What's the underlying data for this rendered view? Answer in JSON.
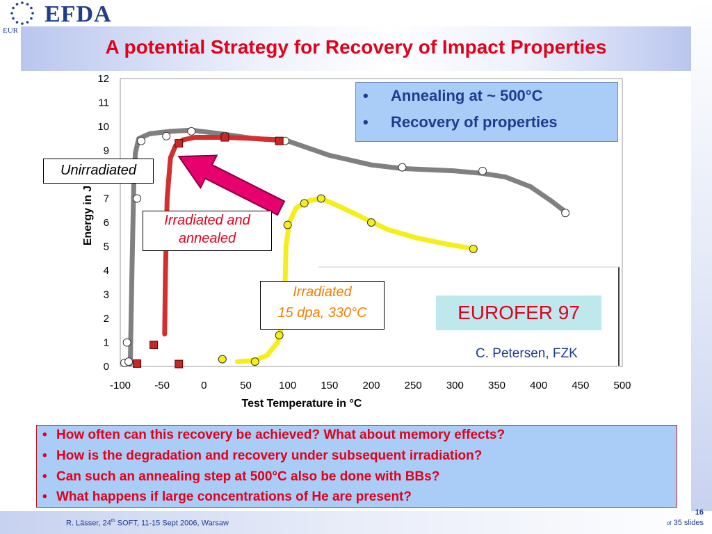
{
  "header": {
    "logo_text": "EFDA",
    "eu_label": "EUR"
  },
  "title": "A potential Strategy for Recovery of Impact Properties",
  "chart_data": {
    "type": "line",
    "xlabel": "Test Temperature in °C",
    "ylabel": "Energy in J",
    "xlim": [
      -100,
      500
    ],
    "ylim": [
      0,
      12
    ],
    "x_ticks": [
      -100,
      -50,
      0,
      50,
      100,
      150,
      200,
      250,
      300,
      350,
      400,
      450,
      500
    ],
    "y_ticks": [
      0,
      1,
      2,
      3,
      4,
      5,
      6,
      7,
      8,
      9,
      10,
      11,
      12
    ],
    "grid": false,
    "series": [
      {
        "name": "Unirradiated",
        "color": "#808080",
        "marker": "circle-white",
        "curve": [
          [
            -88,
            0.1
          ],
          [
            -86,
            4
          ],
          [
            -84,
            7.5
          ],
          [
            -82,
            8.9
          ],
          [
            -78,
            9.5
          ],
          [
            -65,
            9.7
          ],
          [
            -40,
            9.8
          ],
          [
            -15,
            9.85
          ],
          [
            20,
            9.7
          ],
          [
            60,
            9.5
          ],
          [
            100,
            9.4
          ],
          [
            150,
            8.8
          ],
          [
            200,
            8.4
          ],
          [
            237,
            8.25
          ],
          [
            270,
            8.2
          ],
          [
            300,
            8.15
          ],
          [
            332,
            8.05
          ],
          [
            360,
            7.9
          ],
          [
            390,
            7.5
          ],
          [
            415,
            6.9
          ],
          [
            430,
            6.5
          ]
        ],
        "points": [
          [
            -95,
            0.15
          ],
          [
            -90,
            0.2
          ],
          [
            -92,
            1.0
          ],
          [
            -80,
            7.0
          ],
          [
            -75,
            9.4
          ],
          [
            -45,
            9.6
          ],
          [
            -15,
            9.8
          ],
          [
            25,
            9.6
          ],
          [
            97,
            9.4
          ],
          [
            237,
            8.3
          ],
          [
            333,
            8.15
          ],
          [
            432,
            6.4
          ]
        ]
      },
      {
        "name": "Irradiated and annealed",
        "color": "#d32f2f",
        "marker": "square",
        "curve": [
          [
            -47,
            1.35
          ],
          [
            -46,
            4
          ],
          [
            -44,
            7
          ],
          [
            -40,
            8.7
          ],
          [
            -34,
            9.2
          ],
          [
            -25,
            9.45
          ],
          [
            -10,
            9.55
          ],
          [
            25,
            9.55
          ],
          [
            60,
            9.5
          ],
          [
            90,
            9.45
          ]
        ],
        "points": [
          [
            -80,
            0.12
          ],
          [
            -60,
            0.9
          ],
          [
            -30,
            0.1
          ],
          [
            -30,
            9.3
          ],
          [
            25,
            9.55
          ],
          [
            90,
            9.4
          ]
        ]
      },
      {
        "name": "Irradiated 15 dpa, 330°C",
        "color": "#f6ee1a",
        "marker": "circle-yellow",
        "curve": [
          [
            40,
            0.2
          ],
          [
            60,
            0.25
          ],
          [
            75,
            0.45
          ],
          [
            88,
            1.0
          ],
          [
            95,
            2.0
          ],
          [
            97,
            3.5
          ],
          [
            98,
            5.0
          ],
          [
            102,
            6.0
          ],
          [
            110,
            6.6
          ],
          [
            125,
            6.9
          ],
          [
            140,
            7.0
          ],
          [
            160,
            6.7
          ],
          [
            190,
            6.2
          ],
          [
            220,
            5.7
          ],
          [
            255,
            5.35
          ],
          [
            290,
            5.1
          ],
          [
            315,
            4.95
          ]
        ],
        "points": [
          [
            22,
            0.3
          ],
          [
            61,
            0.2
          ],
          [
            90,
            1.3
          ],
          [
            100,
            5.9
          ],
          [
            120,
            6.8
          ],
          [
            140,
            7.0
          ],
          [
            200,
            6.0
          ],
          [
            322,
            4.9
          ]
        ]
      }
    ]
  },
  "legend": {
    "bullet": "•",
    "items": [
      "Annealing at ~ 500°C",
      "Recovery of properties"
    ]
  },
  "labels": {
    "unirradiated": "Unirradiated",
    "annealed_line1": "Irradiated and",
    "annealed_line2": "annealed",
    "irradiated_line1": "Irradiated",
    "irradiated_line2": "15 dpa, 330°C",
    "material": "EUROFER 97",
    "credit": "C. Petersen, FZK"
  },
  "questions": {
    "bullet": "•",
    "items": [
      "How often can this recovery be achieved? What about memory effects?",
      "How is the degradation and recovery under subsequent irradiation?",
      "Can such an annealing step at 500°C also be done with BBs?",
      "What happens if large concentrations of He are present?"
    ]
  },
  "footer": {
    "author": "R. Lässer, 24",
    "author_sup": "th",
    "event": " SOFT, 11-15 Sept 2006, Warsaw",
    "slide_number": "16",
    "of_label": "of",
    "total": " 35 slides"
  }
}
